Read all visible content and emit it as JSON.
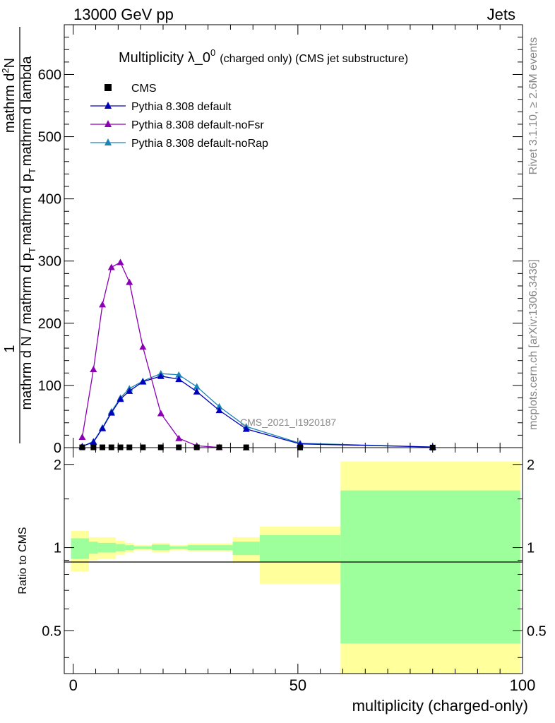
{
  "header": {
    "left": "13000 GeV pp",
    "right": "Jets"
  },
  "side_labels": {
    "rivet": "Rivet 3.1.10, ≥ 2.6M events",
    "mcplots": "mcplots.cern.ch [arXiv:1306.3436]"
  },
  "colors": {
    "cms": "#000000",
    "default": "#0000bb",
    "noFsr": "#8b00b5",
    "noRap": "#1a84b8",
    "band_inner": "#9cff9c",
    "band_outer": "#ffff9c"
  },
  "chart_data": [
    {
      "type": "line",
      "title": "Multiplicity λ_0",
      "title_sup": "0",
      "title_suffix": "(charged only) (CMS jet substructure)",
      "analysis_label": "CMS_2021_I1920187",
      "ylabel_numerator": "1",
      "ylabel_num_right": "mathrm d",
      "ylabel_num_right_sup": "2",
      "ylabel_num_right_tail": "N",
      "ylabel_denominator": "mathrm d N / mathrm d p",
      "ylabel_denominator_sub": "T",
      "ylabel_denominator_tail": "mathrm d p",
      "ylabel_denominator_sub2": "T",
      "ylabel_denominator_tail2": "mathrm d lambda",
      "xlim": [
        -2,
        100
      ],
      "ylim": [
        0,
        680
      ],
      "yticks": [
        0,
        100,
        200,
        300,
        400,
        500,
        600
      ],
      "ytick_labels": [
        "0",
        "100",
        "200",
        "300",
        "400",
        "500",
        "600"
      ],
      "legend": [
        {
          "name": "CMS",
          "marker": "square"
        },
        {
          "name": "Pythia 8.308 default",
          "marker": "triangle"
        },
        {
          "name": "Pythia 8.308 default-noFsr",
          "marker": "triangle"
        },
        {
          "name": "Pythia 8.308 default-noRap",
          "marker": "triangle"
        }
      ],
      "series": [
        {
          "name": "CMS",
          "x": [
            2,
            4.5,
            6.5,
            8.5,
            10.5,
            12.5,
            15.5,
            19.5,
            23.5,
            27.5,
            32.5,
            38.5,
            50.5,
            80
          ],
          "y": [
            0.5,
            0.5,
            0.5,
            0.5,
            0.5,
            0.5,
            0.5,
            0.5,
            0.5,
            0.5,
            0.5,
            0.5,
            0.3,
            0.1
          ]
        },
        {
          "name": "Pythia 8.308 default",
          "x": [
            2,
            4.5,
            6.5,
            8.5,
            10.5,
            12.5,
            15.5,
            19.5,
            23.5,
            27.5,
            32.5,
            38.5,
            50.5,
            80
          ],
          "y": [
            2,
            9,
            31,
            56,
            78,
            91,
            106,
            115,
            110,
            90,
            60,
            30,
            6,
            1
          ]
        },
        {
          "name": "Pythia 8.308 default-noFsr",
          "x": [
            2,
            4.5,
            6.5,
            8.5,
            10.5,
            12.5,
            15.5,
            19.5,
            23.5,
            27.5,
            32.5,
            38.5
          ],
          "y": [
            17,
            126,
            230,
            290,
            298,
            266,
            162,
            55,
            15,
            3,
            0.5,
            0.2
          ]
        },
        {
          "name": "Pythia 8.308 default-noRap",
          "x": [
            2,
            4.5,
            6.5,
            8.5,
            10.5,
            12.5,
            15.5,
            19.5,
            23.5,
            27.5,
            32.5,
            38.5,
            50.5,
            80
          ],
          "y": [
            2,
            10,
            32,
            58,
            80,
            95,
            107,
            119,
            117,
            98,
            66,
            34,
            7,
            1
          ]
        }
      ]
    },
    {
      "type": "area",
      "ylabel": "Ratio to CMS",
      "xlabel": "multiplicity (charged-only)",
      "xlim": [
        -2,
        100
      ],
      "ylim": [
        0.35,
        2.3
      ],
      "yticks": [
        0.5,
        1,
        2
      ],
      "ytick_labels": [
        "0.5",
        "1",
        "2"
      ],
      "xticks": [
        0,
        50,
        100
      ],
      "xtick_labels": [
        "0",
        "50",
        "100"
      ],
      "bins": [
        {
          "lo": -0.5,
          "hi": 3.5,
          "inner": [
            0.91,
            1.08
          ],
          "outer": [
            0.82,
            1.15
          ]
        },
        {
          "lo": 3.5,
          "hi": 5.5,
          "inner": [
            0.95,
            1.05
          ],
          "outer": [
            0.9,
            1.09
          ]
        },
        {
          "lo": 5.5,
          "hi": 9.5,
          "inner": [
            0.96,
            1.04
          ],
          "outer": [
            0.91,
            1.09
          ]
        },
        {
          "lo": 9.5,
          "hi": 11.5,
          "inner": [
            0.97,
            1.03
          ],
          "outer": [
            0.94,
            1.06
          ]
        },
        {
          "lo": 11.5,
          "hi": 13.5,
          "inner": [
            0.98,
            1.02
          ],
          "outer": [
            0.96,
            1.04
          ]
        },
        {
          "lo": 13.5,
          "hi": 17.5,
          "inner": [
            0.99,
            1.01
          ],
          "outer": [
            0.98,
            1.02
          ]
        },
        {
          "lo": 17.5,
          "hi": 21.5,
          "inner": [
            0.98,
            1.025
          ],
          "outer": [
            0.96,
            1.04
          ]
        },
        {
          "lo": 21.5,
          "hi": 25.5,
          "inner": [
            0.99,
            1.01
          ],
          "outer": [
            0.98,
            1.02
          ]
        },
        {
          "lo": 25.5,
          "hi": 35.5,
          "inner": [
            0.98,
            1.02
          ],
          "outer": [
            0.97,
            1.035
          ]
        },
        {
          "lo": 35.5,
          "hi": 41.5,
          "inner": [
            0.94,
            1.05
          ],
          "outer": [
            0.89,
            1.09
          ]
        },
        {
          "lo": 41.5,
          "hi": 59.5,
          "inner": [
            0.89,
            1.11
          ],
          "outer": [
            0.74,
            1.19
          ]
        },
        {
          "lo": 59.5,
          "hi": 99.5,
          "inner": [
            0.45,
            1.61
          ],
          "outer": [
            0.35,
            2.05
          ]
        }
      ]
    }
  ]
}
